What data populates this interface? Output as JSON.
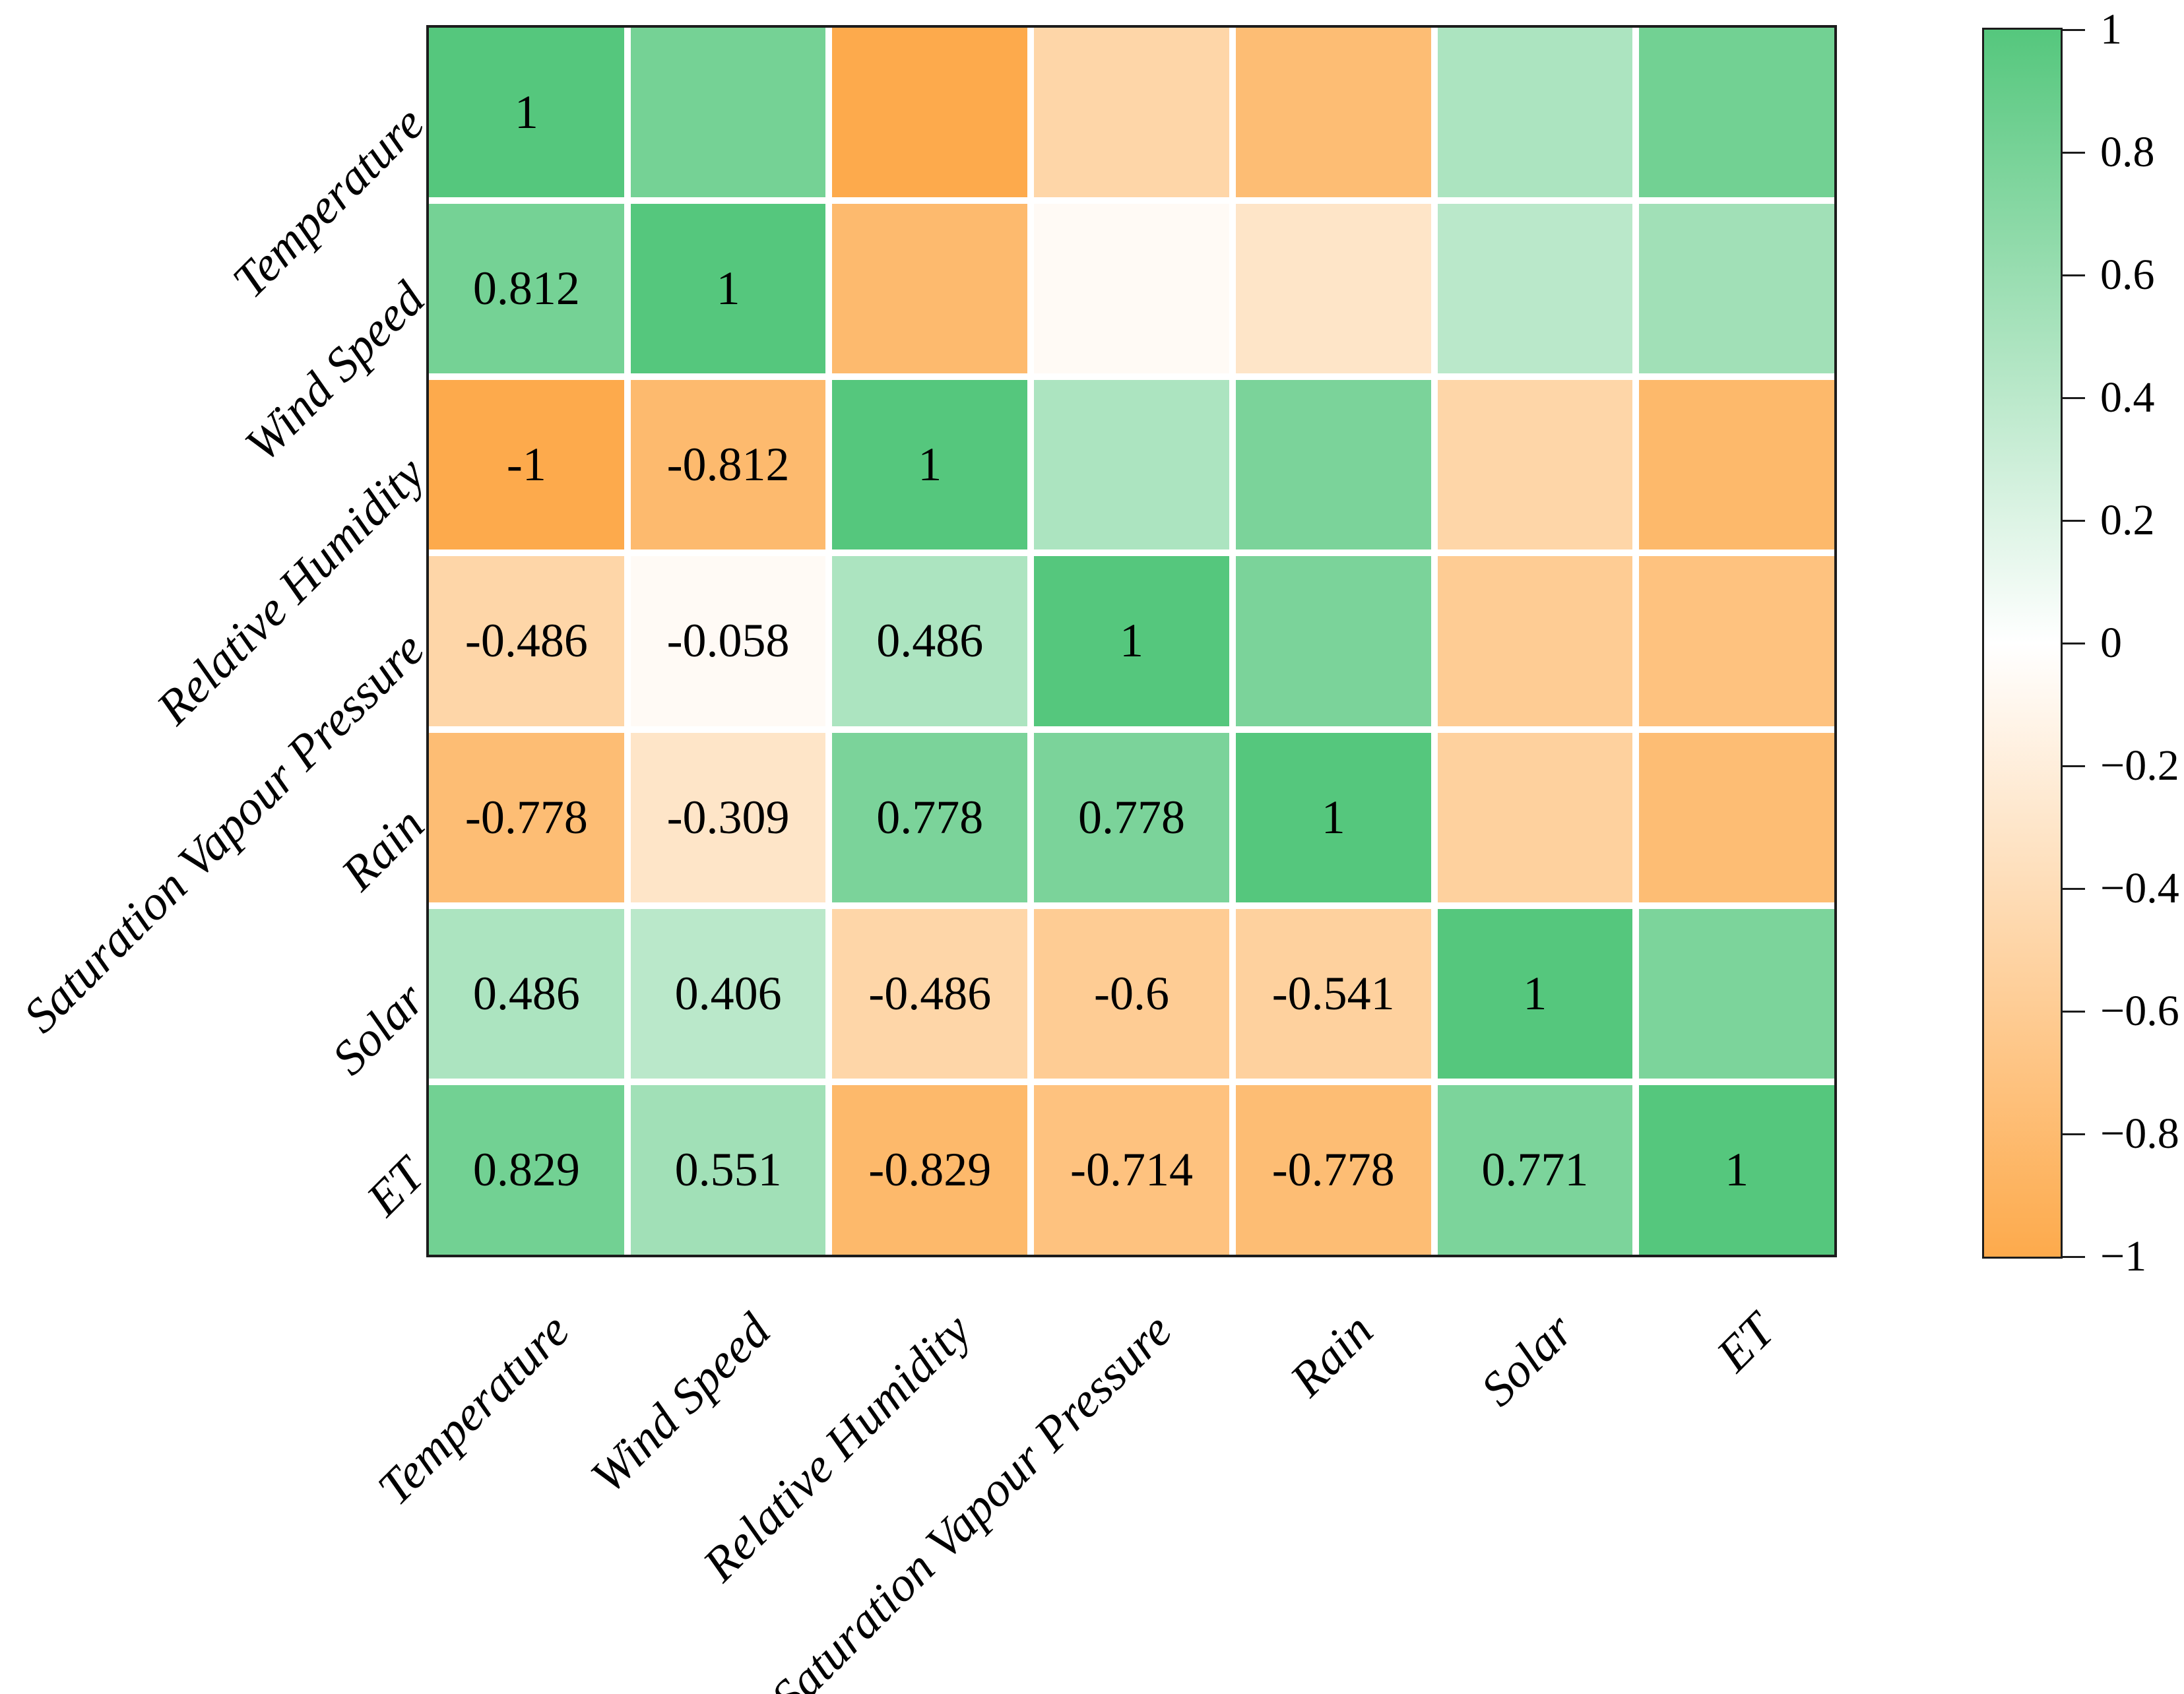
{
  "chart_data": {
    "type": "heatmap",
    "title": "",
    "categories": [
      "Temperature",
      "Wind Speed",
      "Relative Humidity",
      "Saturation Vapour Pressure",
      "Rain",
      "Solar",
      "ET"
    ],
    "matrix": [
      [
        1,
        0.812,
        -1,
        -0.486,
        -0.778,
        0.486,
        0.829
      ],
      [
        0.812,
        1,
        -0.812,
        -0.058,
        -0.309,
        0.406,
        0.551
      ],
      [
        -1,
        -0.812,
        1,
        0.486,
        0.778,
        -0.486,
        -0.829
      ],
      [
        -0.486,
        -0.058,
        0.486,
        1,
        0.778,
        -0.6,
        -0.714
      ],
      [
        -0.778,
        -0.309,
        0.778,
        0.778,
        1,
        -0.541,
        -0.778
      ],
      [
        0.486,
        0.406,
        -0.486,
        -0.6,
        -0.541,
        1,
        0.771
      ],
      [
        0.829,
        0.551,
        -0.829,
        -0.714,
        -0.778,
        0.771,
        1
      ]
    ],
    "annotations": [
      [
        "1",
        "",
        "",
        "",
        "",
        "",
        ""
      ],
      [
        "0.812",
        "1",
        "",
        "",
        "",
        "",
        ""
      ],
      [
        "-1",
        "-0.812",
        "1",
        "",
        "",
        "",
        ""
      ],
      [
        "-0.486",
        "-0.058",
        "0.486",
        "1",
        "",
        "",
        ""
      ],
      [
        "-0.778",
        "-0.309",
        "0.778",
        "0.778",
        "1",
        "",
        ""
      ],
      [
        "0.486",
        "0.406",
        "-0.486",
        "-0.6",
        "-0.541",
        "1",
        ""
      ],
      [
        "0.829",
        "0.551",
        "-0.829",
        "-0.714",
        "-0.778",
        "0.771",
        "1"
      ]
    ],
    "annotated_triangle": "lower",
    "colorbar": {
      "position": "right",
      "range": [
        -1,
        1
      ],
      "ticks": [
        {
          "value": 1,
          "label": "1"
        },
        {
          "value": 0.8,
          "label": "0.8"
        },
        {
          "value": 0.6,
          "label": "0.6"
        },
        {
          "value": 0.4,
          "label": "0.4"
        },
        {
          "value": 0.2,
          "label": "0.2"
        },
        {
          "value": 0,
          "label": "0"
        },
        {
          "value": -0.2,
          "label": "−0.2"
        },
        {
          "value": -0.4,
          "label": "−0.4"
        },
        {
          "value": -0.6,
          "label": "−0.6"
        },
        {
          "value": -0.8,
          "label": "−0.8"
        },
        {
          "value": -1,
          "label": "−1"
        }
      ]
    },
    "colors": {
      "positive_end": "#55C77D",
      "zero": "#FFFFFF",
      "negative_end": "#FDAA4C",
      "annotation": "#000000",
      "grid_gap": "#FFFFFF",
      "border": "#1C1C1C",
      "background": "#FFFFFF"
    },
    "layout_hints": {
      "label_rotation_deg": 45,
      "grid": "7x7",
      "gridlines": "white gaps between cells",
      "legend": "vertical colorbar on right"
    }
  }
}
